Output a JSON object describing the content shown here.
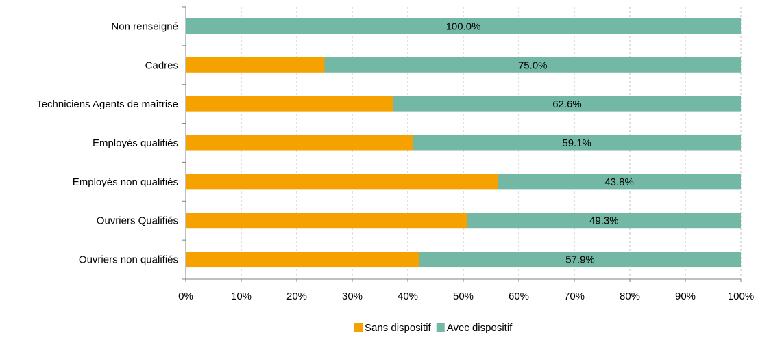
{
  "chart_data": {
    "type": "bar",
    "orientation": "horizontal",
    "stacked": true,
    "percent": true,
    "categories": [
      "Non renseigné",
      "Cadres",
      "Techniciens Agents de maîtrise",
      "Employés qualifiés",
      "Employés non qualifiés",
      "Ouvriers Qualifiés",
      "Ouvriers non qualifiés"
    ],
    "series": [
      {
        "name": "Sans dispositif",
        "color": "#f5a100",
        "values": [
          0,
          25.0,
          37.4,
          40.9,
          56.2,
          50.7,
          42.1
        ],
        "labels": [
          "",
          "",
          "",
          "",
          "",
          "",
          ""
        ]
      },
      {
        "name": "Avec dispositif",
        "color": "#72b8a5",
        "values": [
          100.0,
          75.0,
          62.6,
          59.1,
          43.8,
          49.3,
          57.9
        ],
        "labels": [
          "100.0%",
          "75.0%",
          "62.6%",
          "59.1%",
          "43.8%",
          "49.3%",
          "57.9%"
        ]
      }
    ],
    "xlim": [
      0,
      100
    ],
    "xticks": [
      0,
      10,
      20,
      30,
      40,
      50,
      60,
      70,
      80,
      90,
      100
    ],
    "xtick_labels": [
      "0%",
      "10%",
      "20%",
      "30%",
      "40%",
      "50%",
      "60%",
      "70%",
      "80%",
      "90%",
      "100%"
    ],
    "grid": true,
    "legend_position": "bottom"
  }
}
